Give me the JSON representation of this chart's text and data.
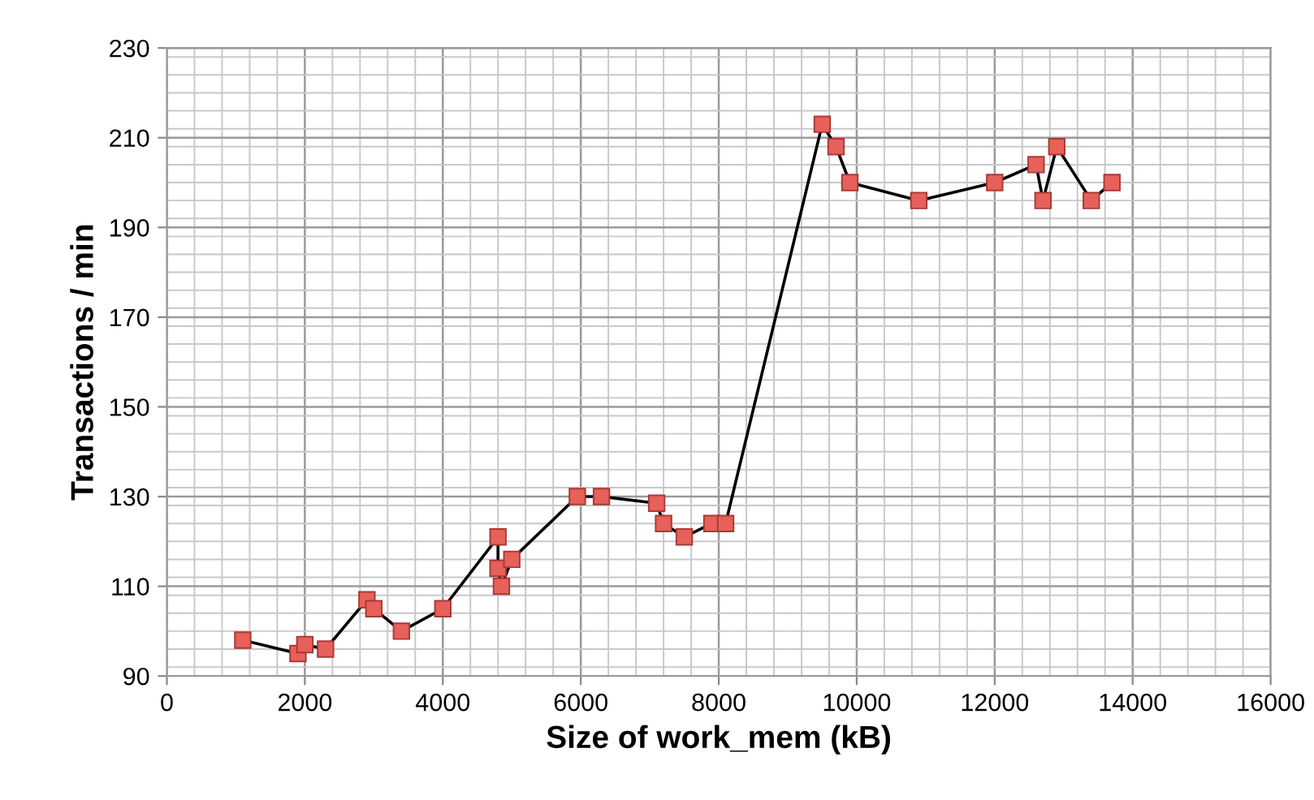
{
  "chart_data": {
    "type": "line",
    "xlabel": "Size of work_mem (kB)",
    "ylabel": "Transactions / min",
    "x": [
      1100,
      1900,
      2000,
      2300,
      2900,
      3000,
      3400,
      4000,
      4800,
      4800,
      4850,
      5000,
      5950,
      6300,
      7100,
      7200,
      7500,
      7900,
      8100,
      9500,
      9700,
      9900,
      10900,
      12000,
      12600,
      12700,
      12900,
      13400,
      13700
    ],
    "series": [
      {
        "color": "#e8605a",
        "values": [
          98,
          95,
          97,
          96,
          107,
          105,
          100,
          105,
          121,
          114,
          110,
          116,
          130,
          130,
          128.5,
          124,
          121,
          124,
          124,
          213,
          208,
          200,
          196,
          200,
          204,
          196,
          208,
          196,
          200
        ]
      }
    ],
    "xlim": [
      0,
      16000
    ],
    "xticks": [
      0,
      2000,
      4000,
      6000,
      8000,
      10000,
      12000,
      14000,
      16000
    ],
    "ylim": [
      90,
      230
    ],
    "yticks": [
      90,
      110,
      130,
      150,
      170,
      190,
      210,
      230
    ],
    "grid": true,
    "marker": "square",
    "line_style": "solid"
  }
}
